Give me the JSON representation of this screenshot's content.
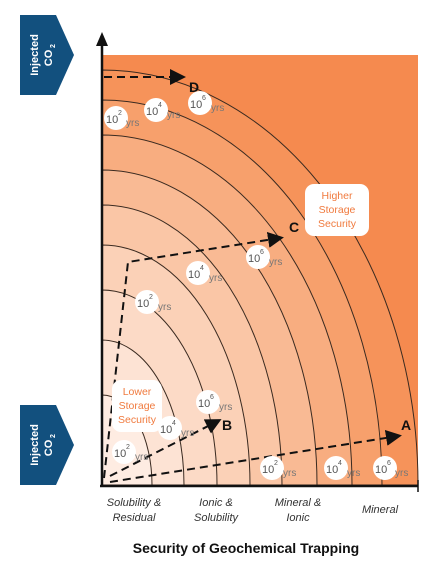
{
  "title_axis": "Security of Geochemical Trapping",
  "injected": {
    "line1": "Injected",
    "line2": "CO",
    "sub": "2"
  },
  "categories": [
    "Solubility &",
    "Residual",
    "Ionic &",
    "Solubility",
    "Mineral &",
    "Ionic",
    "Mineral"
  ],
  "points": {
    "a": "A",
    "b": "B",
    "c": "C",
    "d": "D"
  },
  "time": {
    "base": "10",
    "e2": "2",
    "e4": "4",
    "e6": "6",
    "unit": "yrs"
  },
  "security": {
    "higher": [
      "Higher",
      "Storage",
      "Security"
    ],
    "lower": [
      "Lower",
      "Storage",
      "Security"
    ]
  },
  "colors": {
    "outer": "#f07a3e",
    "inner": "#fce2d2",
    "arrow_bg": "#12507e",
    "lower_text": "#f07a3e",
    "higher_text": "#f07a3e"
  }
}
